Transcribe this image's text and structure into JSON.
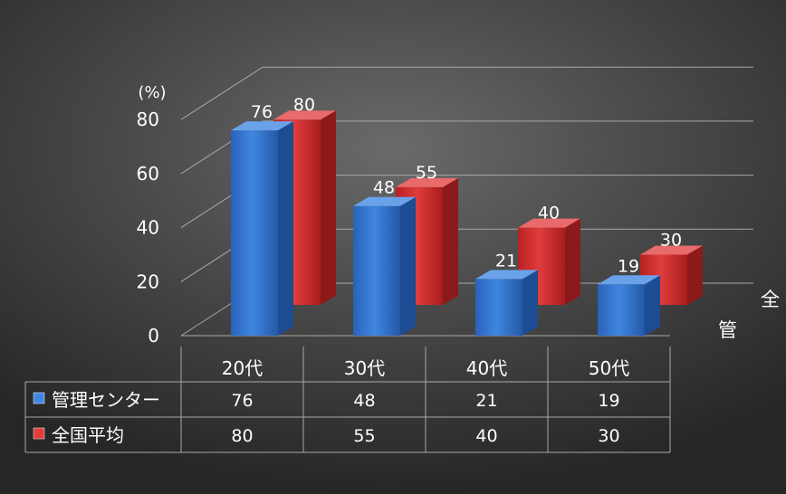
{
  "chart_data": {
    "type": "bar",
    "title": "",
    "unit_label": "(%)",
    "categories": [
      "20代",
      "30代",
      "40代",
      "50代"
    ],
    "series": [
      {
        "name": "管理センター",
        "values": [
          76,
          48,
          21,
          19
        ],
        "color": "#2e6fc8"
      },
      {
        "name": "全国平均",
        "values": [
          80,
          55,
          40,
          30
        ],
        "color": "#cf2b2b"
      }
    ],
    "ylim": [
      0,
      80
    ],
    "y_ticks": [
      0,
      20,
      40,
      60,
      80
    ],
    "depth_axis_labels": [
      "全",
      "管"
    ],
    "grid": true,
    "legend": "data-table"
  }
}
